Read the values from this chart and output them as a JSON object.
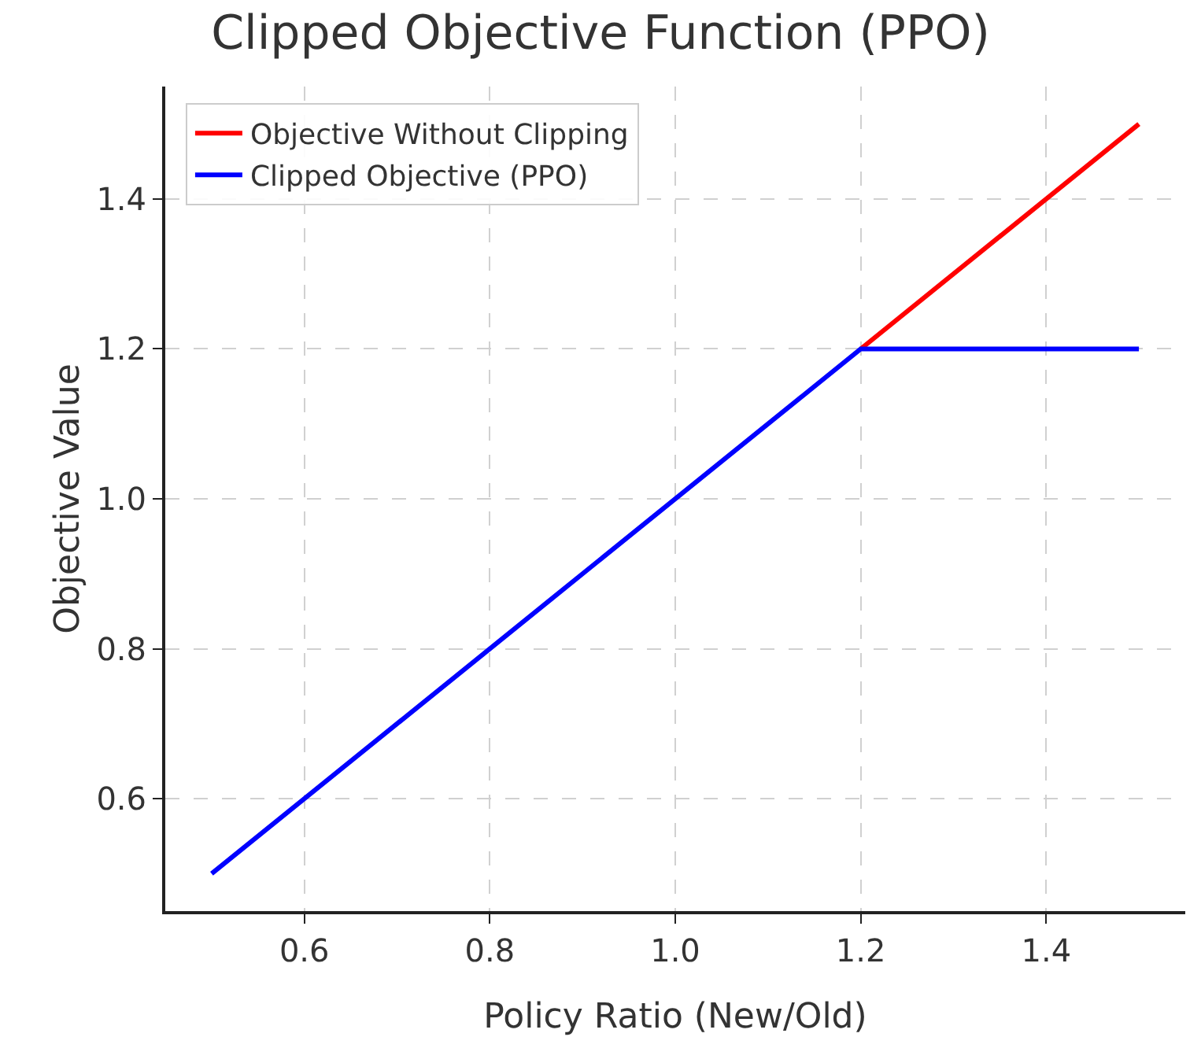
{
  "chart_data": {
    "type": "line",
    "title": "Clipped Objective Function (PPO)",
    "xlabel": "Policy Ratio (New/Old)",
    "ylabel": "Objective Value",
    "series": [
      {
        "name": "Objective Without Clipping",
        "color": "#ff0000",
        "x": [
          1.2,
          1.5
        ],
        "values": [
          1.2,
          1.5
        ]
      },
      {
        "name": "Clipped Objective (PPO)",
        "color": "#0000ff",
        "x": [
          0.5,
          1.2,
          1.5
        ],
        "values": [
          0.5,
          1.2,
          1.2
        ]
      }
    ],
    "xlim": [
      0.45,
      1.55
    ],
    "xticks": [
      0.6,
      0.8,
      {
        "value": 1,
        "label": "1.0"
      },
      1.2,
      1.4
    ],
    "ylim": [
      0.45,
      1.55
    ],
    "yticks": [
      0.6,
      0.8,
      {
        "value": 1,
        "label": "1.0"
      },
      1.2,
      1.4
    ],
    "grid": true,
    "legend": "top left",
    "marker": "none",
    "line_style": "solid"
  }
}
